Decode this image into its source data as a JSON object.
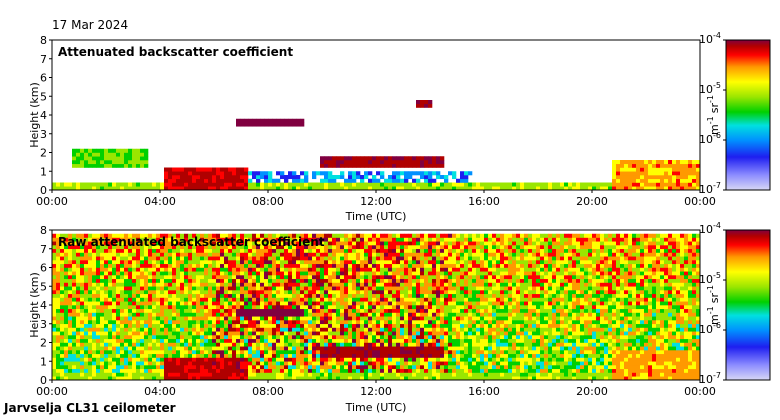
{
  "date_label": "17 Mar 2024",
  "station_label": "Jarvselja CL31 ceilometer",
  "colors": {
    "background": "#ffffff",
    "cmap": [
      "#d7d7f5",
      "#8c8cff",
      "#1e1ef0",
      "#0090ff",
      "#00e0e0",
      "#00d000",
      "#9ae600",
      "#ffff00",
      "#ff9900",
      "#ff0000",
      "#b00000",
      "#800040"
    ]
  },
  "chart_data": [
    {
      "type": "heatmap",
      "title": "Attenuated backscatter coefficient",
      "xlabel": "Time (UTC)",
      "ylabel": "Height (km)",
      "x_ticks": [
        "00:00",
        "04:00",
        "08:00",
        "12:00",
        "16:00",
        "20:00",
        "00:00"
      ],
      "xlim": [
        0,
        24
      ],
      "y_ticks": [
        "0",
        "1",
        "2",
        "3",
        "4",
        "5",
        "6",
        "7",
        "8"
      ],
      "ylim": [
        0,
        8
      ],
      "colorbar": {
        "ticks": [
          {
            "base": "10",
            "exp": "-4"
          },
          {
            "base": "10",
            "exp": "-5"
          },
          {
            "base": "10",
            "exp": "-6"
          },
          {
            "base": "10",
            "exp": "-7"
          }
        ],
        "unit": {
          "a": "m",
          "a_exp": "-1",
          "b": "sr",
          "b_exp": "-1"
        },
        "range": [
          -7,
          -4
        ],
        "scale": "log"
      },
      "features": [
        {
          "kind": "surface-layer",
          "x": [
            0,
            24
          ],
          "y": [
            0,
            0.45
          ],
          "level": 0.55
        },
        {
          "kind": "boundary-layer",
          "x": [
            4.2,
            7.3
          ],
          "y": [
            0.1,
            1.2
          ],
          "level": 0.85
        },
        {
          "kind": "aerosol-dome",
          "x": [
            6.5,
            15.5
          ],
          "y": [
            0,
            0.9
          ],
          "level": 0.3
        },
        {
          "kind": "cloud-base",
          "x": [
            10,
            14.5
          ],
          "y": [
            1.2,
            1.75
          ],
          "level": 0.9
        },
        {
          "kind": "cloud",
          "x": [
            6.8,
            9.4
          ],
          "y": [
            3.5,
            3.9
          ],
          "level": 0.98
        },
        {
          "kind": "cloud",
          "x": [
            13.5,
            14.0
          ],
          "y": [
            4.5,
            4.8
          ],
          "level": 0.92
        },
        {
          "kind": "cloud",
          "x": [
            0.8,
            3.5
          ],
          "y": [
            1.2,
            2.3
          ],
          "level": 0.5
        },
        {
          "kind": "boundary-layer",
          "x": [
            20.7,
            24
          ],
          "y": [
            0,
            1.5
          ],
          "level": 0.7
        }
      ]
    },
    {
      "type": "heatmap",
      "title": "Raw attenuated backscatter coefficient",
      "xlabel": "Time (UTC)",
      "ylabel": "Height (km)",
      "x_ticks": [
        "00:00",
        "04:00",
        "08:00",
        "12:00",
        "16:00",
        "20:00",
        "00:00"
      ],
      "xlim": [
        0,
        24
      ],
      "y_ticks": [
        "0",
        "1",
        "2",
        "3",
        "4",
        "5",
        "6",
        "7",
        "8"
      ],
      "ylim": [
        0,
        8
      ],
      "colorbar": {
        "ticks": [
          {
            "base": "10",
            "exp": "-4"
          },
          {
            "base": "10",
            "exp": "-5"
          },
          {
            "base": "10",
            "exp": "-6"
          },
          {
            "base": "10",
            "exp": "-7"
          }
        ],
        "unit": {
          "a": "m",
          "a_exp": "-1",
          "b": "sr",
          "b_exp": "-1"
        },
        "range": [
          -7,
          -4
        ],
        "scale": "log"
      },
      "features": [
        {
          "kind": "noise-background",
          "x": [
            0,
            24
          ],
          "y": [
            0.5,
            7.8
          ],
          "level": 0.45
        },
        {
          "kind": "noisy-columns",
          "x": [
            6.0,
            14.8
          ],
          "y": [
            0.5,
            7.8
          ],
          "level": 0.8
        },
        {
          "kind": "low-signal",
          "x": [
            0,
            24
          ],
          "y": [
            0.3,
            1.5
          ],
          "level": 0.15
        },
        {
          "kind": "surface-layer",
          "x": [
            0,
            24
          ],
          "y": [
            0,
            0.45
          ],
          "level": 0.55
        },
        {
          "kind": "boundary-layer",
          "x": [
            4.2,
            7.3
          ],
          "y": [
            0.1,
            1.2
          ],
          "level": 0.85
        },
        {
          "kind": "cloud-base",
          "x": [
            10,
            14.5
          ],
          "y": [
            1.2,
            1.75
          ],
          "level": 0.9
        },
        {
          "kind": "cloud",
          "x": [
            6.8,
            9.4
          ],
          "y": [
            3.5,
            3.9
          ],
          "level": 0.98
        },
        {
          "kind": "boundary-layer",
          "x": [
            20.7,
            24
          ],
          "y": [
            0,
            1.5
          ],
          "level": 0.7
        }
      ]
    }
  ]
}
